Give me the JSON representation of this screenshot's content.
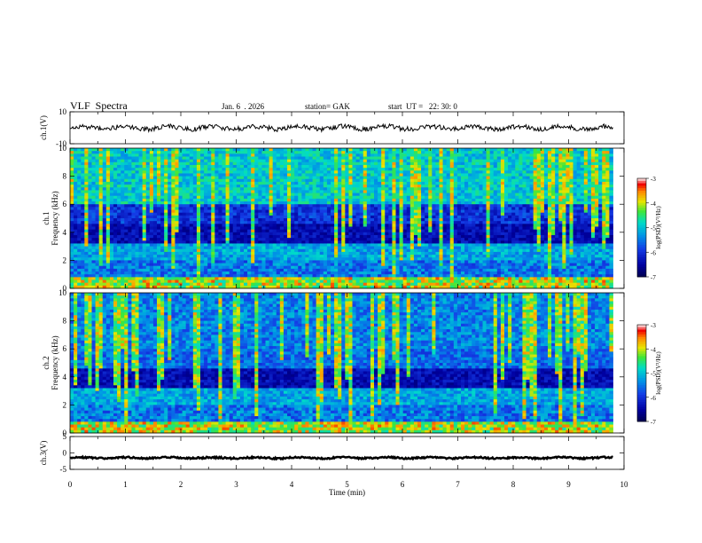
{
  "header": {
    "title": "VLF  Spectra",
    "date": "Jan. 6  . 2026",
    "station": "station= GAK",
    "start_ut": "start  UT =   22: 30: 0"
  },
  "chart_data": [
    {
      "type": "line",
      "name": "ch1-waveform",
      "ylabel": "ch.1(V)",
      "ylim": [
        -10,
        10
      ],
      "yticks": [
        "10",
        "-10"
      ],
      "description_level": 0
    },
    {
      "type": "heatmap",
      "name": "ch1-spectrogram",
      "ylabel_top": "ch.1",
      "ylabel": "Frequency  (kHz)",
      "ylim": [
        0,
        10
      ],
      "yticks": [
        "0",
        "2",
        "4",
        "6",
        "8",
        "10"
      ],
      "colorbar": {
        "label": "log(PSD)(V²/Hz)",
        "ticks": [
          "-3",
          "-4",
          "-5",
          "-6",
          "-7"
        ],
        "range": [
          -7,
          -3
        ]
      }
    },
    {
      "type": "heatmap",
      "name": "ch2-spectrogram",
      "ylabel_top": "ch.2",
      "ylabel": "Frequency  (kHz)",
      "ylim": [
        0,
        10
      ],
      "yticks": [
        "0",
        "2",
        "4",
        "6",
        "8",
        "10"
      ],
      "colorbar": {
        "label": "log(PSD)(V²/Hz)",
        "ticks": [
          "-3",
          "-4",
          "-5",
          "-6",
          "-7"
        ],
        "range": [
          -7,
          -3
        ]
      }
    },
    {
      "type": "line",
      "name": "ch3-waveform",
      "ylabel": "ch.3(V)",
      "ylim": [
        -5,
        5
      ],
      "yticks": [
        "5",
        "0",
        "-5"
      ],
      "description_level": -1.5
    }
  ],
  "xaxis": {
    "label": "Time  (min)",
    "xlim": [
      0,
      10
    ],
    "ticks": [
      "0",
      "1",
      "2",
      "3",
      "4",
      "5",
      "6",
      "7",
      "8",
      "9",
      "10"
    ],
    "data_end": 9.8
  },
  "colors": {
    "waveform": "#000000",
    "background": "#ffffff"
  }
}
